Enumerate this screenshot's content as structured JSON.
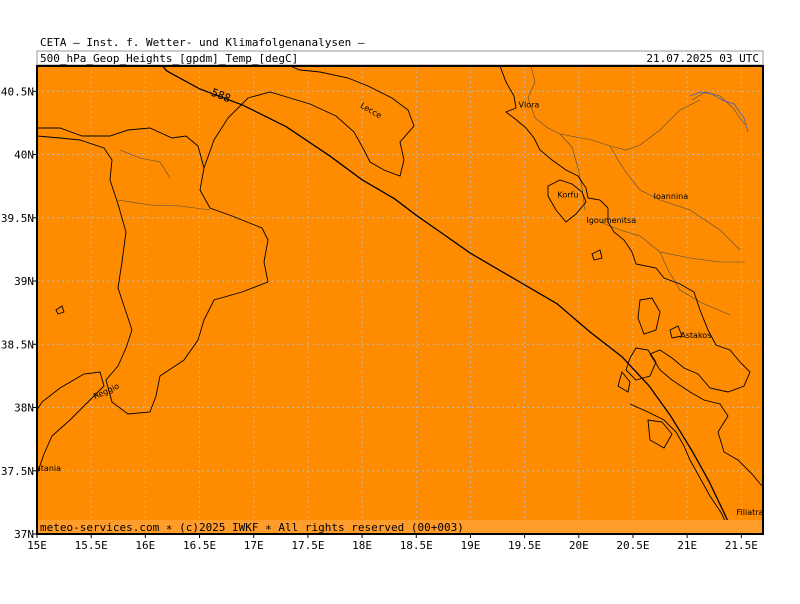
{
  "header": {
    "institute": "CETA – Inst. f. Wetter- und Klimafolgenanalysen –",
    "field": "500_hPa_Geop_Heights_[gpdm]_Temp_[degC]",
    "datetime": "21.07.2025 03 UTC"
  },
  "map": {
    "fill_color": "#ff8c00",
    "lon_min": 15.0,
    "lon_max": 21.7,
    "lat_min": 37.0,
    "lat_max": 40.7,
    "lon_ticks": [
      {
        "v": 15.0,
        "label": "15E"
      },
      {
        "v": 15.5,
        "label": "15.5E"
      },
      {
        "v": 16.0,
        "label": "16E"
      },
      {
        "v": 16.5,
        "label": "16.5E"
      },
      {
        "v": 17.0,
        "label": "17E"
      },
      {
        "v": 17.5,
        "label": "17.5E"
      },
      {
        "v": 18.0,
        "label": "18E"
      },
      {
        "v": 18.5,
        "label": "18.5E"
      },
      {
        "v": 19.0,
        "label": "19E"
      },
      {
        "v": 19.5,
        "label": "19.5E"
      },
      {
        "v": 20.0,
        "label": "20E"
      },
      {
        "v": 20.5,
        "label": "20.5E"
      },
      {
        "v": 21.0,
        "label": "21E"
      },
      {
        "v": 21.5,
        "label": "21.5E"
      }
    ],
    "lat_ticks": [
      {
        "v": 37.0,
        "label": "37N"
      },
      {
        "v": 37.5,
        "label": "37.5N"
      },
      {
        "v": 38.0,
        "label": "38N"
      },
      {
        "v": 38.5,
        "label": "38.5N"
      },
      {
        "v": 39.0,
        "label": "39N"
      },
      {
        "v": 39.5,
        "label": "39.5N"
      },
      {
        "v": 40.0,
        "label": "40N"
      },
      {
        "v": 40.5,
        "label": "40.5N"
      }
    ],
    "contour": {
      "label": "588",
      "label_lon": 16.6,
      "label_lat": 40.47,
      "points": [
        [
          15.9,
          40.95
        ],
        [
          16.2,
          40.66
        ],
        [
          16.5,
          40.52
        ],
        [
          16.9,
          40.39
        ],
        [
          17.3,
          40.22
        ],
        [
          17.7,
          39.99
        ],
        [
          18.0,
          39.8
        ],
        [
          18.3,
          39.65
        ],
        [
          18.5,
          39.52
        ],
        [
          18.7,
          39.4
        ],
        [
          19.0,
          39.22
        ],
        [
          19.4,
          39.02
        ],
        [
          19.8,
          38.82
        ],
        [
          20.1,
          38.6
        ],
        [
          20.4,
          38.4
        ],
        [
          20.65,
          38.17
        ],
        [
          20.85,
          37.93
        ],
        [
          21.05,
          37.65
        ],
        [
          21.2,
          37.42
        ],
        [
          21.35,
          37.15
        ],
        [
          21.45,
          36.95
        ]
      ]
    },
    "cities": [
      {
        "name": "Lecce",
        "lon": 18.07,
        "lat": 40.33
      },
      {
        "name": "Vlora",
        "lon": 19.54,
        "lat": 40.37
      },
      {
        "name": "Korfu",
        "lon": 19.9,
        "lat": 39.66
      },
      {
        "name": "Ioannina",
        "lon": 20.85,
        "lat": 39.65
      },
      {
        "name": "Igoumenitsa",
        "lon": 20.3,
        "lat": 39.46
      },
      {
        "name": "Astakos",
        "lon": 21.08,
        "lat": 38.55
      },
      {
        "name": "Reggio",
        "lon": 15.65,
        "lat": 38.11
      },
      {
        "name": "Catania",
        "lon": 15.08,
        "lat": 37.5
      },
      {
        "name": "Filiatra",
        "lon": 21.58,
        "lat": 37.15
      }
    ]
  },
  "footer": {
    "credit": "meteo-services.com ∗ (c)2025 IWKF ∗ All rights reserved (00+003)"
  }
}
